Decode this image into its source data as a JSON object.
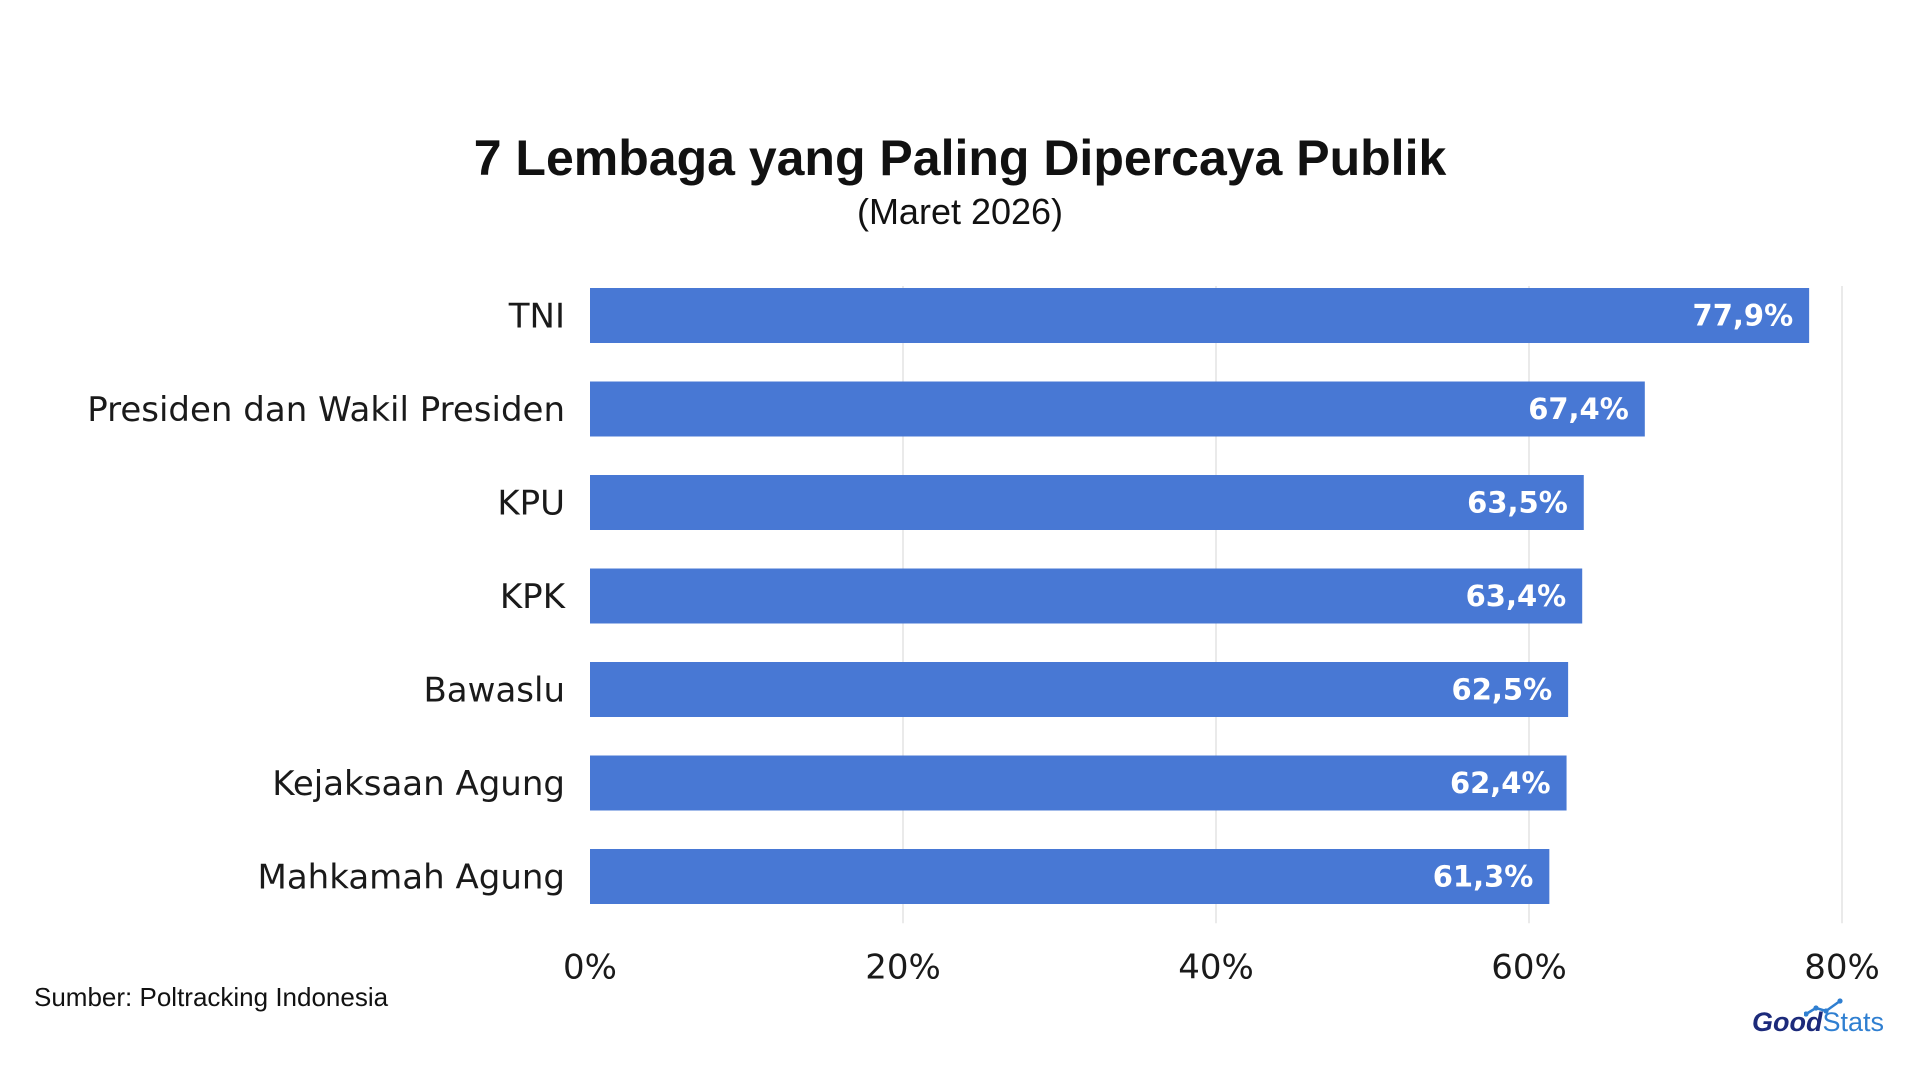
{
  "header": {
    "title": "7 Lembaga yang Paling Dipercaya Publik",
    "subtitle": "(Maret 2026)"
  },
  "footer": {
    "source": "Sumber: Poltracking Indonesia",
    "logo_part1": "Good",
    "logo_part2": "Stats"
  },
  "colors": {
    "bar": "#4878d4",
    "grid": "#e3e3e3",
    "value_text": "#ffffff",
    "logo_dark": "#1c2a7a",
    "logo_light": "#2f7fd1"
  },
  "chart_data": {
    "type": "bar",
    "orientation": "horizontal",
    "title": "7 Lembaga yang Paling Dipercaya Publik",
    "subtitle": "(Maret 2026)",
    "categories": [
      "TNI",
      "Presiden dan Wakil Presiden",
      "KPU",
      "KPK",
      "Bawaslu",
      "Kejaksaan Agung",
      "Mahkamah Agung"
    ],
    "values": [
      77.9,
      67.4,
      63.5,
      63.4,
      62.5,
      62.4,
      61.3
    ],
    "value_labels": [
      "77,9%",
      "67,4%",
      "63,5%",
      "63,4%",
      "62,5%",
      "62,4%",
      "61,3%"
    ],
    "xlim": [
      0,
      80
    ],
    "xticks": [
      0,
      20,
      40,
      60,
      80
    ],
    "xtick_labels": [
      "0%",
      "20%",
      "40%",
      "60%",
      "80%"
    ],
    "grid": true,
    "legend": false
  }
}
